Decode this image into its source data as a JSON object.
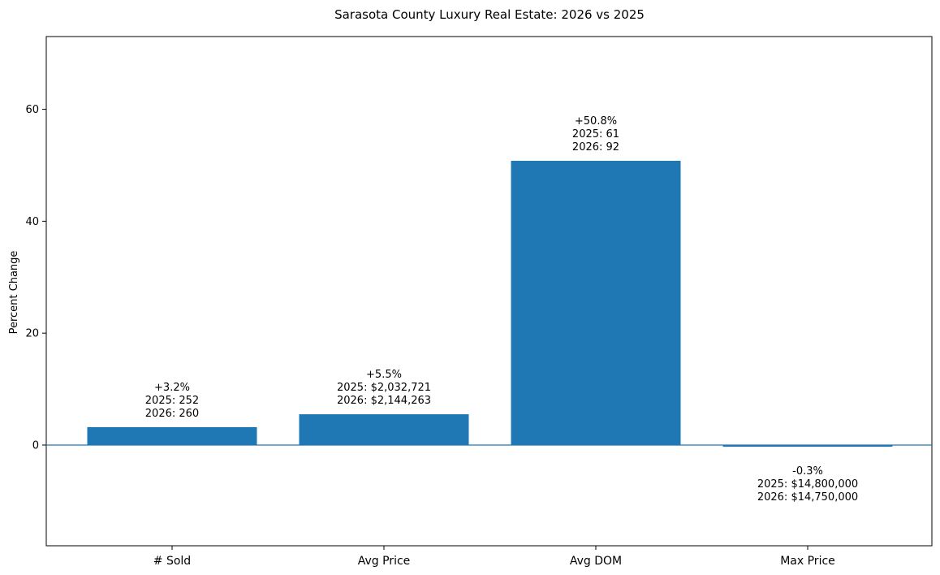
{
  "chart_data": {
    "type": "bar",
    "title": "Sarasota County Luxury Real Estate: 2026 vs 2025",
    "xlabel": "",
    "ylabel": "Percent Change",
    "ylim": [
      -18,
      73
    ],
    "yticks": [
      "0",
      "20",
      "40",
      "60"
    ],
    "grid": false,
    "bar_color": "#1f77b4",
    "zero_line_color": "#1f77b4",
    "categories": [
      "# Sold",
      "Avg Price",
      "Avg DOM",
      "Max Price"
    ],
    "values": [
      3.2,
      5.5,
      50.8,
      -0.3
    ],
    "annotations": [
      [
        "+3.2%",
        "2025: 252",
        "2026: 260"
      ],
      [
        "+5.5%",
        "2025: $2,032,721",
        "2026: $2,144,263"
      ],
      [
        "+50.8%",
        "2025: 61",
        "2026: 92"
      ],
      [
        "-0.3%",
        "2025: $14,800,000",
        "2026: $14,750,000"
      ]
    ]
  }
}
